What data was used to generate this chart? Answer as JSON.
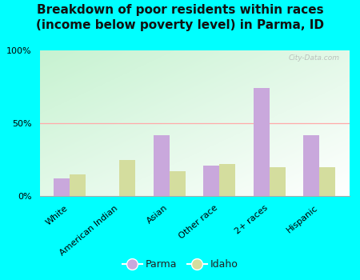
{
  "title": "Breakdown of poor residents within races\n(income below poverty level) in Parma, ID",
  "categories": [
    "White",
    "American Indian",
    "Asian",
    "Other race",
    "2+ races",
    "Hispanic"
  ],
  "parma_values": [
    12,
    0,
    42,
    21,
    74,
    42
  ],
  "idaho_values": [
    15,
    25,
    17,
    22,
    20,
    20
  ],
  "parma_color": "#c9a8dc",
  "idaho_color": "#d4dd9e",
  "bar_width": 0.32,
  "ylim": [
    0,
    100
  ],
  "yticks": [
    0,
    50,
    100
  ],
  "ytick_labels": [
    "0%",
    "50%",
    "100%"
  ],
  "bg_top_left": "#c8f0d0",
  "bg_bottom_right": "#f5fff5",
  "outer_background": "#00ffff",
  "grid_color": "#ffaaaa",
  "watermark": "City-Data.com",
  "legend_parma": "Parma",
  "legend_idaho": "Idaho",
  "title_fontsize": 11,
  "tick_fontsize": 8,
  "legend_fontsize": 9
}
